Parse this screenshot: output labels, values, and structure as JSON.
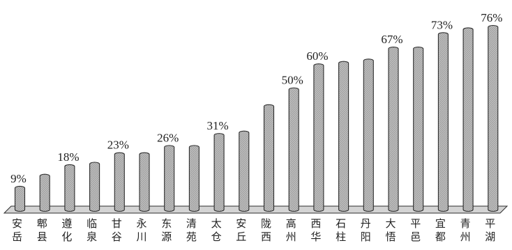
{
  "chart_data": {
    "type": "bar",
    "title": "",
    "xlabel": "",
    "ylabel": "",
    "ylim": [
      0,
      80
    ],
    "grid": false,
    "legend": "none",
    "categories": [
      "安岳",
      "郫县",
      "遵化",
      "临泉",
      "甘谷",
      "永川",
      "东源",
      "清苑",
      "太仓",
      "安丘",
      "陇西",
      "高州",
      "西华",
      "石柱",
      "丹阳",
      "大悟",
      "平邑",
      "宜都",
      "青州",
      "平湖"
    ],
    "values": [
      9,
      14,
      18,
      19,
      23,
      23,
      26,
      26,
      31,
      32,
      43,
      50,
      60,
      61,
      62,
      67,
      67,
      73,
      75,
      76
    ],
    "data_labels": [
      "9%",
      "",
      "18%",
      "",
      "23%",
      "",
      "26%",
      "",
      "31%",
      "",
      "",
      "50%",
      "60%",
      "",
      "",
      "67%",
      "",
      "73%",
      "",
      "76%"
    ],
    "bar_color": "#bdbdbd",
    "bar_edge_color": "#2b2b2b"
  }
}
